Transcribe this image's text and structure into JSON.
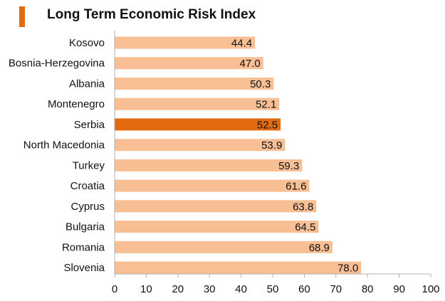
{
  "header": {
    "title": "Long Term Economic Risk Index"
  },
  "colors": {
    "bar": "#f9bf94",
    "highlight": "#e26b12",
    "accent": "#e26b12"
  },
  "chart_data": {
    "type": "bar",
    "orientation": "horizontal",
    "title": "Long Term Economic Risk Index",
    "categories": [
      "Kosovo",
      "Bosnia-Herzegovina",
      "Albania",
      "Montenegro",
      "Serbia",
      "North Macedonia",
      "Turkey",
      "Croatia",
      "Cyprus",
      "Bulgaria",
      "Romania",
      "Slovenia"
    ],
    "values": [
      44.4,
      47.0,
      50.3,
      52.1,
      52.5,
      53.9,
      59.3,
      61.6,
      63.8,
      64.5,
      68.9,
      78.0
    ],
    "labels": [
      "44.4",
      "47.0",
      "50.3",
      "52.1",
      "52.5",
      "53.9",
      "59.3",
      "61.6",
      "63.8",
      "64.5",
      "68.9",
      "78.0"
    ],
    "highlight": "Serbia",
    "xlim": [
      0,
      100
    ],
    "xticks": [
      0,
      10,
      20,
      30,
      40,
      50,
      60,
      70,
      80,
      90,
      100
    ],
    "xlabel": "",
    "ylabel": "",
    "grid": false,
    "legend": "none"
  }
}
